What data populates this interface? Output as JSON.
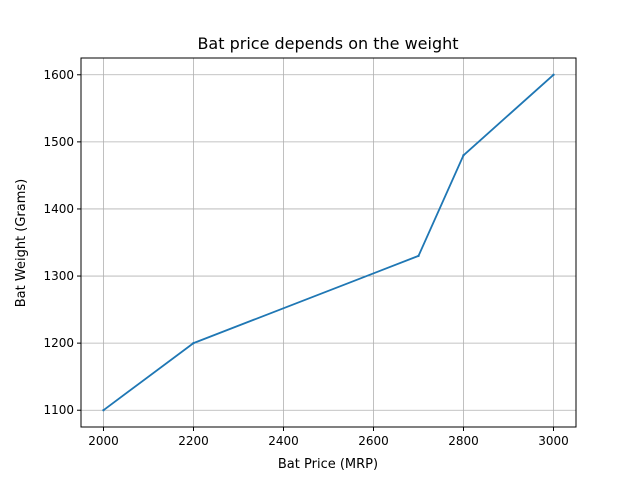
{
  "chart_data": {
    "type": "line",
    "title": "Bat price depends on the weight",
    "xlabel": "Bat Price (MRP)",
    "ylabel": "Bat Weight (Grams)",
    "xlim": [
      1950,
      3050
    ],
    "ylim": [
      1075,
      1625
    ],
    "xticks": [
      2000,
      2200,
      2400,
      2600,
      2800,
      3000
    ],
    "yticks": [
      1100,
      1200,
      1300,
      1400,
      1500,
      1600
    ],
    "grid": true,
    "legend": "none",
    "series": [
      {
        "color": "#1f77b4",
        "points": [
          {
            "x": 2000,
            "y": 1100
          },
          {
            "x": 2200,
            "y": 1200
          },
          {
            "x": 2700,
            "y": 1330
          },
          {
            "x": 2800,
            "y": 1480
          },
          {
            "x": 3000,
            "y": 1600
          }
        ]
      }
    ]
  }
}
